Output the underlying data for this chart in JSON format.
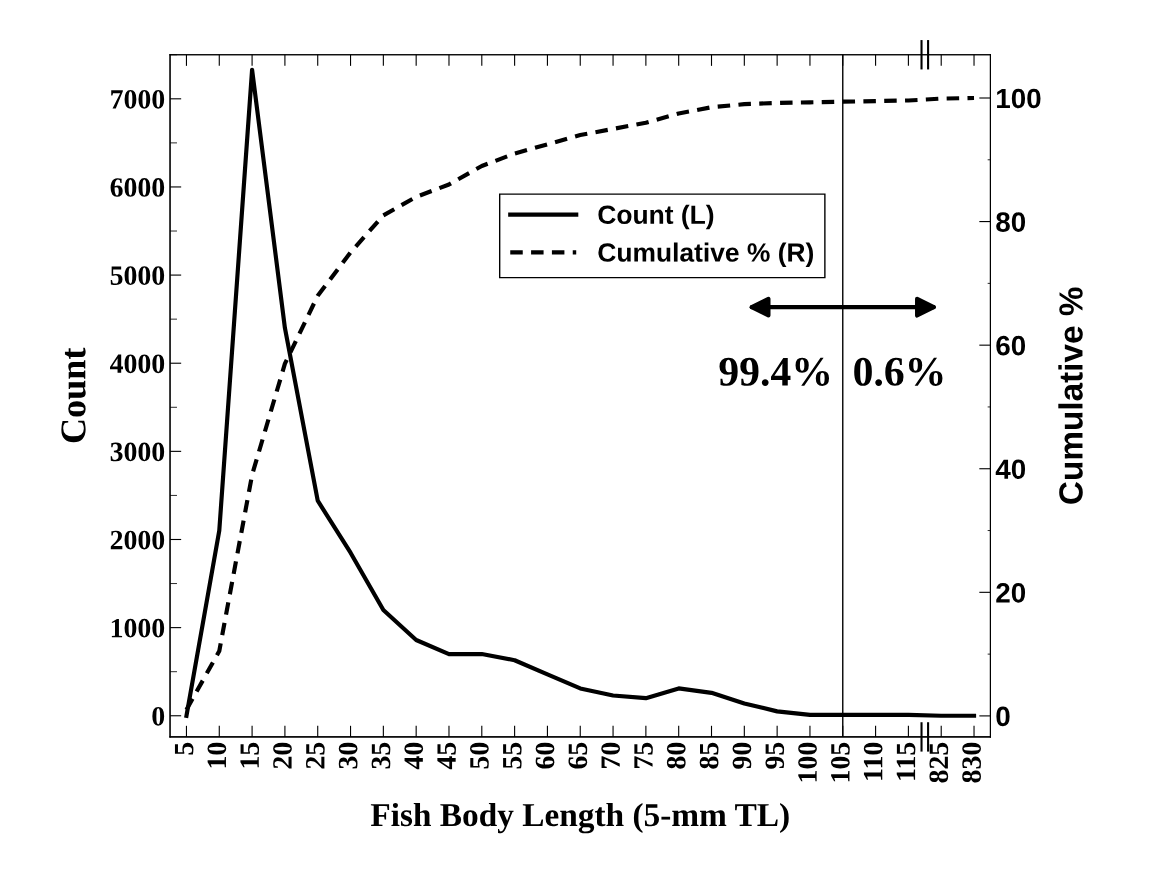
{
  "chart_data": {
    "type": "line",
    "xlabel": "Fish Body Length (5-mm TL)",
    "ylabel": "Count",
    "y2label": "Cumulative %",
    "categories": [
      "5",
      "10",
      "15",
      "20",
      "25",
      "30",
      "35",
      "40",
      "45",
      "50",
      "55",
      "60",
      "65",
      "70",
      "75",
      "80",
      "85",
      "90",
      "95",
      "100",
      "105",
      "110",
      "115",
      "825",
      "830"
    ],
    "series": [
      {
        "name": "Count (L)",
        "color": "#000000",
        "line_style": "solid",
        "values": [
          0,
          2100,
          7330,
          4400,
          2440,
          1850,
          1200,
          860,
          700,
          700,
          630,
          470,
          310,
          230,
          200,
          310,
          260,
          140,
          50,
          10,
          10,
          10,
          10,
          0,
          0
        ]
      },
      {
        "name": "Cumulative % (R)",
        "color": "#000000",
        "line_style": "dashed",
        "axis": "y2",
        "values": [
          1,
          10.5,
          39,
          57,
          68,
          75,
          81,
          84,
          86,
          89,
          91,
          92.5,
          94,
          95,
          96,
          97.5,
          98.5,
          99,
          99.2,
          99.3,
          99.4,
          99.5,
          99.6,
          99.9,
          100
        ]
      }
    ],
    "ylim": [
      -240,
      7500
    ],
    "yticks": [
      0,
      1000,
      2000,
      3000,
      4000,
      5000,
      6000,
      7000
    ],
    "y2lim": [
      -3.4,
      107
    ],
    "y2ticks": [
      0,
      20,
      40,
      60,
      80,
      100
    ],
    "ref_lines": [
      {
        "axis": "x",
        "value": "105",
        "color": "#000000"
      }
    ],
    "annotations": [
      "99.4%",
      "0.6%"
    ],
    "legend": "top",
    "grid": false,
    "marker": "none"
  }
}
